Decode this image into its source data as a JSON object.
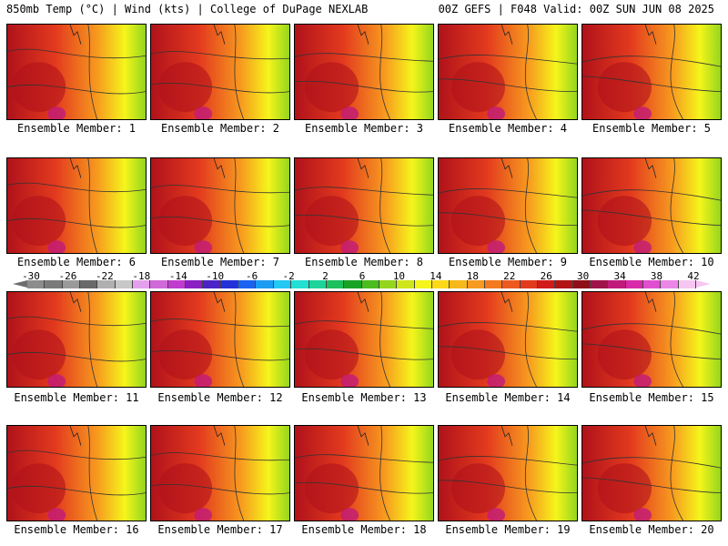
{
  "header": {
    "left": "850mb Temp (°C) | Wind (kts) | College of DuPage NEXLAB",
    "right": "00Z GEFS | F048 Valid: 00Z SUN JUN 08 2025"
  },
  "members": [
    "Ensemble Member: 1",
    "Ensemble Member: 2",
    "Ensemble Member: 3",
    "Ensemble Member: 4",
    "Ensemble Member: 5",
    "Ensemble Member: 6",
    "Ensemble Member: 7",
    "Ensemble Member: 8",
    "Ensemble Member: 9",
    "Ensemble Member: 10",
    "Ensemble Member: 11",
    "Ensemble Member: 12",
    "Ensemble Member: 13",
    "Ensemble Member: 14",
    "Ensemble Member: 15",
    "Ensemble Member: 16",
    "Ensemble Member: 17",
    "Ensemble Member: 18",
    "Ensemble Member: 19",
    "Ensemble Member: 20"
  ],
  "colorbar": {
    "ticks": [
      "-30",
      "-26",
      "-22",
      "-18",
      "-14",
      "-10",
      "-6",
      "-2",
      "2",
      "6",
      "10",
      "14",
      "18",
      "22",
      "26",
      "30",
      "34",
      "38",
      "42"
    ],
    "colors": [
      "#8c8c8c",
      "#7a7a7a",
      "#9a9a9a",
      "#6a6a6a",
      "#b0b0b0",
      "#c8c8c8",
      "#e4a0ec",
      "#d06ad8",
      "#c23bd0",
      "#8a1fc4",
      "#4b22c8",
      "#2331d8",
      "#1a63f0",
      "#1c9cf2",
      "#24c8f2",
      "#22e0d2",
      "#1ed49a",
      "#1cc05c",
      "#19a324",
      "#4cbd1e",
      "#94d61d",
      "#cfe61b",
      "#f5f51b",
      "#fbd818",
      "#f7b81b",
      "#f79a1f",
      "#f47a20",
      "#ec5a1f",
      "#e33a1e",
      "#d11b1b",
      "#b21414",
      "#8f0f17",
      "#a0124a",
      "#c01a7a",
      "#d82aa8",
      "#e04fd0",
      "#ec86e6",
      "#f7c6f2"
    ]
  },
  "map_colors": {
    "hot": "#b0121a",
    "red": "#e33a1e",
    "orange": "#f79a1f",
    "yellow": "#f5f51b",
    "green": "#94d61d",
    "magenta": "#c01a7a"
  }
}
